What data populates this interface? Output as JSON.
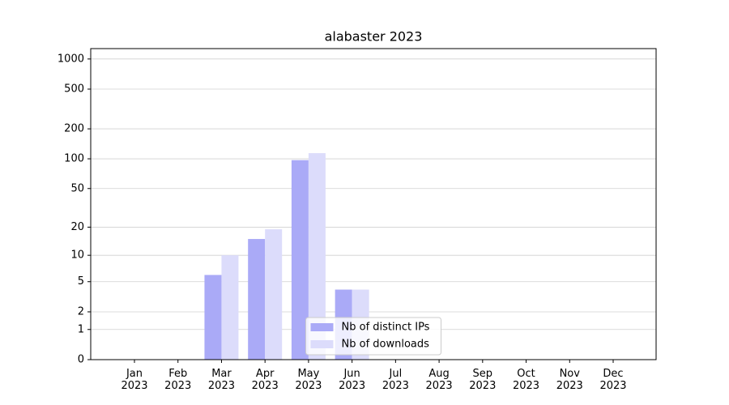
{
  "chart_data": {
    "type": "bar",
    "title": "alabaster 2023",
    "categories": [
      "Jan\n2023",
      "Feb\n2023",
      "Mar\n2023",
      "Apr\n2023",
      "May\n2023",
      "Jun\n2023",
      "Jul\n2023",
      "Aug\n2023",
      "Sep\n2023",
      "Oct\n2023",
      "Nov\n2023",
      "Dec\n2023"
    ],
    "series": [
      {
        "name": "Nb of distinct IPs",
        "color": "#aaaaf7",
        "values": [
          0,
          0,
          6,
          15,
          97,
          4,
          0,
          0,
          0,
          0,
          0,
          0
        ]
      },
      {
        "name": "Nb of downloads",
        "color": "#dcdcfb",
        "values": [
          0,
          0,
          10,
          19,
          114,
          4,
          0,
          0,
          0,
          0,
          0,
          0
        ]
      }
    ],
    "yscale": "log1p",
    "ylim": [
      0,
      1270
    ],
    "yticks": [
      0,
      1,
      2,
      5,
      10,
      20,
      50,
      100,
      200,
      500,
      1000
    ],
    "grid": true,
    "legend": "lower center"
  }
}
